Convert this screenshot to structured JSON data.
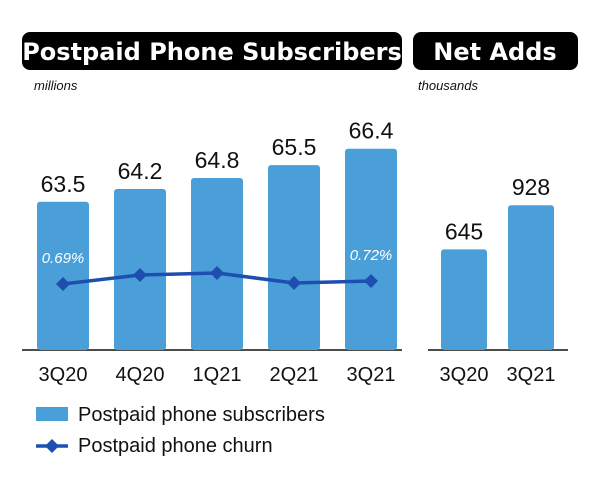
{
  "chart_data": [
    {
      "type": "bar",
      "title": "Postpaid Phone Subscribers",
      "unit": "millions",
      "categories": [
        "3Q20",
        "4Q20",
        "1Q21",
        "2Q21",
        "3Q21"
      ],
      "series": [
        {
          "name": "Postpaid phone subscribers",
          "type": "bar",
          "color": "#4a9fd8",
          "values": [
            63.5,
            64.2,
            64.8,
            65.5,
            66.4
          ]
        },
        {
          "name": "Postpaid phone churn",
          "type": "line",
          "color": "#1e4fb0",
          "values": [
            0.69,
            0.78,
            0.8,
            0.7,
            0.72
          ],
          "visible_labels": {
            "0": "0.69%",
            "4": "0.72%"
          }
        }
      ],
      "legend_position": "bottom-left",
      "grid": false
    },
    {
      "type": "bar",
      "title": "Net Adds",
      "unit": "thousands",
      "categories": [
        "3Q20",
        "3Q21"
      ],
      "series": [
        {
          "type": "bar",
          "color": "#4a9fd8",
          "values": [
            645,
            928
          ]
        }
      ],
      "grid": false
    }
  ]
}
